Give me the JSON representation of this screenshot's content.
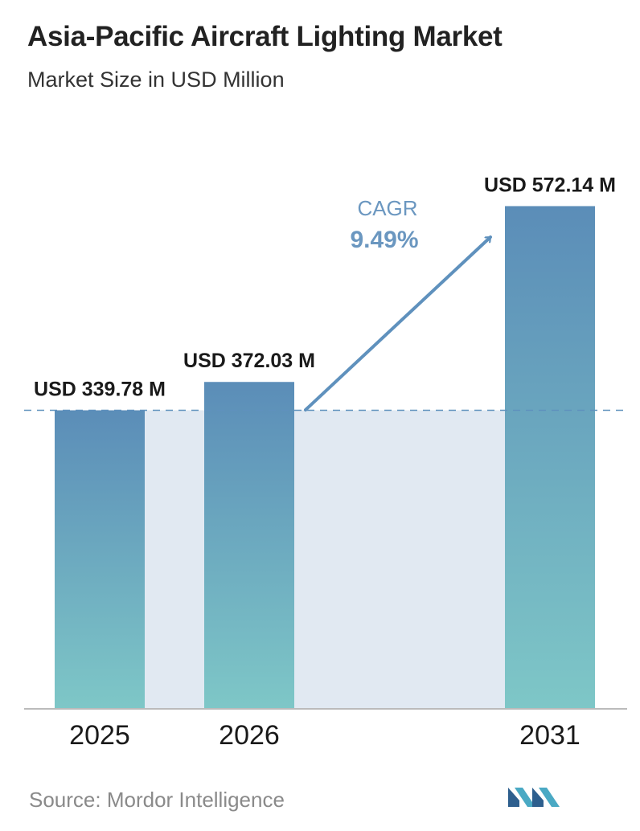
{
  "header": {
    "title": "Asia-Pacific Aircraft Lighting Market",
    "subtitle": "Market Size in USD Million"
  },
  "chart_data": {
    "type": "bar",
    "categories": [
      "2025",
      "2026",
      "2031"
    ],
    "values": [
      339.78,
      372.03,
      572.14
    ],
    "value_labels": [
      "USD 339.78 M",
      "USD 372.03 M",
      "USD 572.14 M"
    ],
    "ylim": [
      0,
      600
    ],
    "grid": false,
    "legend": "none",
    "reference_line": {
      "value": 339.78,
      "style": "dashed"
    },
    "annotation": {
      "label": "CAGR",
      "value": "9.49%"
    },
    "colors": {
      "bar_top": "#5b8db8",
      "bar_bottom": "#7ec7c7",
      "band": "#e1e9f2",
      "arrow": "#5f91bd",
      "cagr_text": "#6b97c0",
      "axis": "#bbbbbb"
    }
  },
  "footer": {
    "source": "Source:  Mordor Intelligence",
    "logo_icon": "mordor-intelligence-logo-icon"
  }
}
